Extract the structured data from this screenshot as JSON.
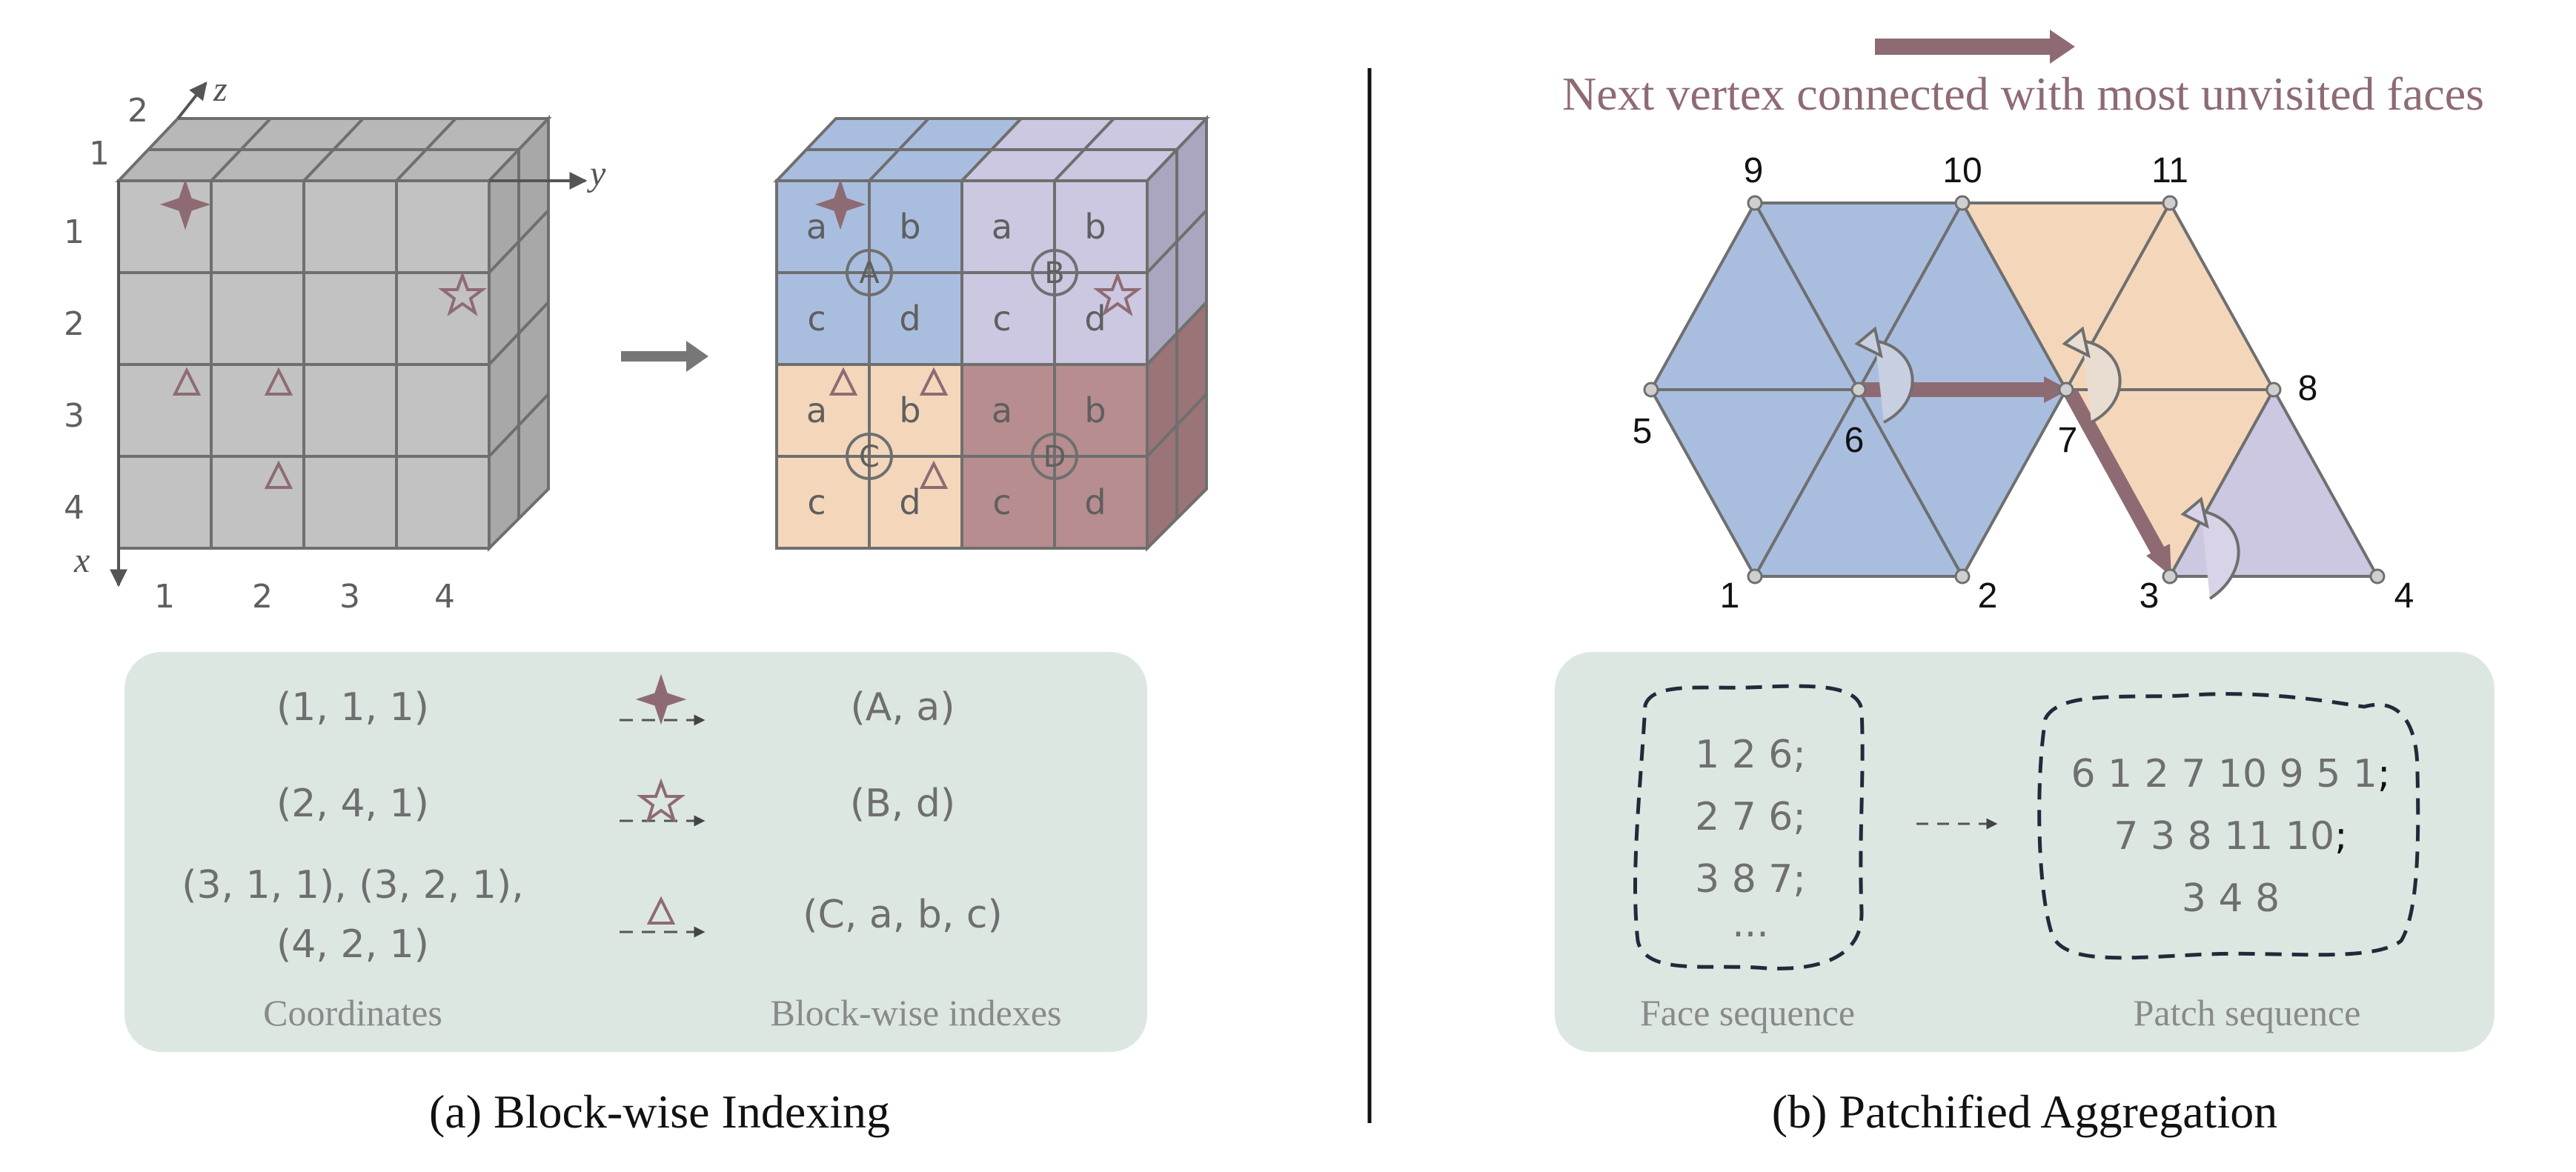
{
  "colors": {
    "gray": "#c2c2c2",
    "gray_top": "#b8b8b8",
    "gray_side": "#a9a9a9",
    "blue": "#a9bedf",
    "lavender": "#cdc8e1",
    "peach": "#f4d7bb",
    "mauve": "#b78d8f",
    "accent": "#8e6b73",
    "panel": "#dde7e1",
    "edge": "#777777"
  },
  "panel_a": {
    "caption": "(a) Block-wise Indexing",
    "axis_labels": {
      "x": "x",
      "y": "y",
      "z": "z"
    },
    "row_ticks": [
      "1",
      "2",
      "3",
      "4"
    ],
    "col_ticks": [
      "1",
      "2",
      "3",
      "4"
    ],
    "depth_ticks": [
      "1",
      "2"
    ],
    "cell_letters": [
      "a",
      "b",
      "c",
      "d"
    ],
    "block_letters": [
      "A",
      "B",
      "C",
      "D"
    ],
    "table": {
      "rows": [
        {
          "coords": "(1, 1, 1)",
          "marker": "star4-icon",
          "index": "(A, a)"
        },
        {
          "coords": "(2, 4, 1)",
          "marker": "star5-icon",
          "index": "(B, d)"
        },
        {
          "coords_line1": "(3, 1, 1), (3, 2, 1),",
          "coords_line2": "(4, 2, 1)",
          "marker": "triangle-icon",
          "index": "(C, a, b, c)"
        }
      ],
      "col_left_label": "Coordinates",
      "col_right_label": "Block-wise indexes"
    }
  },
  "panel_b": {
    "caption": "(b) Patchified Aggregation",
    "legend_text": "Next vertex connected with most unvisited faces",
    "vertex_labels": [
      "1",
      "2",
      "3",
      "4",
      "5",
      "6",
      "7",
      "8",
      "9",
      "10",
      "11"
    ],
    "face_sequence": [
      "1 2 6;",
      "2 7 6;",
      "3 8 7;",
      "..."
    ],
    "face_label": "Face sequence",
    "patch_sequence": [
      "6 1 2 7 10 9 5 1",
      "7 3 8 11 10",
      "3 4 8"
    ],
    "patch_terminators": [
      ";",
      ";",
      ""
    ],
    "patch_label": "Patch sequence"
  }
}
